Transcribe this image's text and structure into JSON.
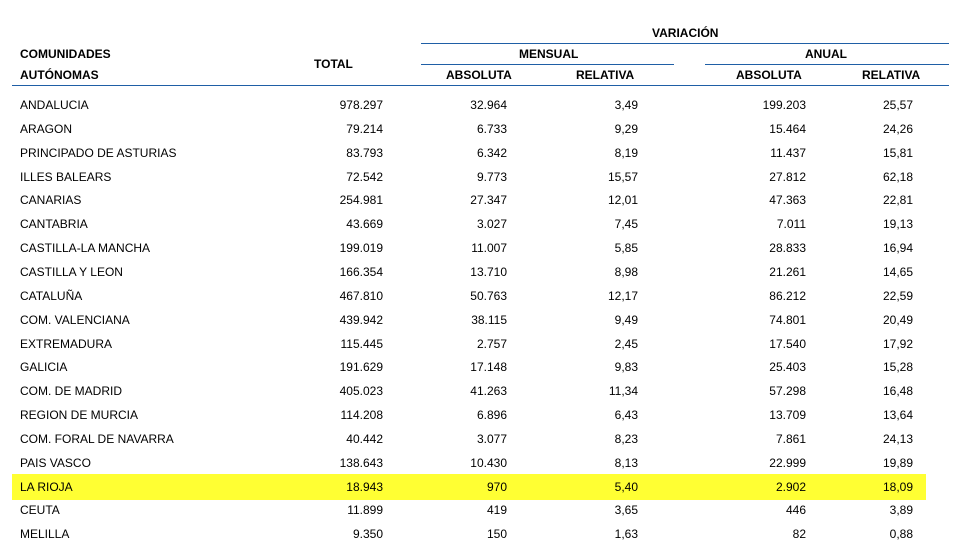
{
  "header": {
    "variacion": "VARIACIÓN",
    "comunidades_line1": "COMUNIDADES",
    "comunidades_line2": "AUTÓNOMAS",
    "total": "TOTAL",
    "mensual": "MENSUAL",
    "anual": "ANUAL",
    "mensual_absoluta": "ABSOLUTA",
    "mensual_relativa": "RELATIVA",
    "anual_absoluta": "ABSOLUTA",
    "anual_relativa": "RELATIVA"
  },
  "highlight_color": "#ffff33",
  "rule_color": "#1f5fa6",
  "rows": [
    {
      "name": "ANDALUCIA",
      "total": "978.297",
      "m_abs": "32.964",
      "m_rel": "3,49",
      "a_abs": "199.203",
      "a_rel": "25,57"
    },
    {
      "name": "ARAGON",
      "total": "79.214",
      "m_abs": "6.733",
      "m_rel": "9,29",
      "a_abs": "15.464",
      "a_rel": "24,26"
    },
    {
      "name": "PRINCIPADO DE ASTURIAS",
      "total": "83.793",
      "m_abs": "6.342",
      "m_rel": "8,19",
      "a_abs": "11.437",
      "a_rel": "15,81"
    },
    {
      "name": "ILLES BALEARS",
      "total": "72.542",
      "m_abs": "9.773",
      "m_rel": "15,57",
      "a_abs": "27.812",
      "a_rel": "62,18"
    },
    {
      "name": "CANARIAS",
      "total": "254.981",
      "m_abs": "27.347",
      "m_rel": "12,01",
      "a_abs": "47.363",
      "a_rel": "22,81"
    },
    {
      "name": "CANTABRIA",
      "total": "43.669",
      "m_abs": "3.027",
      "m_rel": "7,45",
      "a_abs": "7.011",
      "a_rel": "19,13"
    },
    {
      "name": "CASTILLA-LA MANCHA",
      "total": "199.019",
      "m_abs": "11.007",
      "m_rel": "5,85",
      "a_abs": "28.833",
      "a_rel": "16,94"
    },
    {
      "name": "CASTILLA Y LEON",
      "total": "166.354",
      "m_abs": "13.710",
      "m_rel": "8,98",
      "a_abs": "21.261",
      "a_rel": "14,65"
    },
    {
      "name": "CATALUÑA",
      "total": "467.810",
      "m_abs": "50.763",
      "m_rel": "12,17",
      "a_abs": "86.212",
      "a_rel": "22,59"
    },
    {
      "name": "COM. VALENCIANA",
      "total": "439.942",
      "m_abs": "38.115",
      "m_rel": "9,49",
      "a_abs": "74.801",
      "a_rel": "20,49"
    },
    {
      "name": "EXTREMADURA",
      "total": "115.445",
      "m_abs": "2.757",
      "m_rel": "2,45",
      "a_abs": "17.540",
      "a_rel": "17,92"
    },
    {
      "name": "GALICIA",
      "total": "191.629",
      "m_abs": "17.148",
      "m_rel": "9,83",
      "a_abs": "25.403",
      "a_rel": "15,28"
    },
    {
      "name": "COM. DE MADRID",
      "total": "405.023",
      "m_abs": "41.263",
      "m_rel": "11,34",
      "a_abs": "57.298",
      "a_rel": "16,48"
    },
    {
      "name": "REGION DE MURCIA",
      "total": "114.208",
      "m_abs": "6.896",
      "m_rel": "6,43",
      "a_abs": "13.709",
      "a_rel": "13,64"
    },
    {
      "name": "COM. FORAL DE NAVARRA",
      "total": "40.442",
      "m_abs": "3.077",
      "m_rel": "8,23",
      "a_abs": "7.861",
      "a_rel": "24,13"
    },
    {
      "name": "PAIS VASCO",
      "total": "138.643",
      "m_abs": "10.430",
      "m_rel": "8,13",
      "a_abs": "22.999",
      "a_rel": "19,89"
    },
    {
      "name": "LA RIOJA",
      "total": "18.943",
      "m_abs": "970",
      "m_rel": "5,40",
      "a_abs": "2.902",
      "a_rel": "18,09",
      "highlighted": true
    },
    {
      "name": "CEUTA",
      "total": "11.899",
      "m_abs": "419",
      "m_rel": "3,65",
      "a_abs": "446",
      "a_rel": "3,89"
    },
    {
      "name": "MELILLA",
      "total": "9.350",
      "m_abs": "150",
      "m_rel": "1,63",
      "a_abs": "82",
      "a_rel": "0,88"
    }
  ]
}
